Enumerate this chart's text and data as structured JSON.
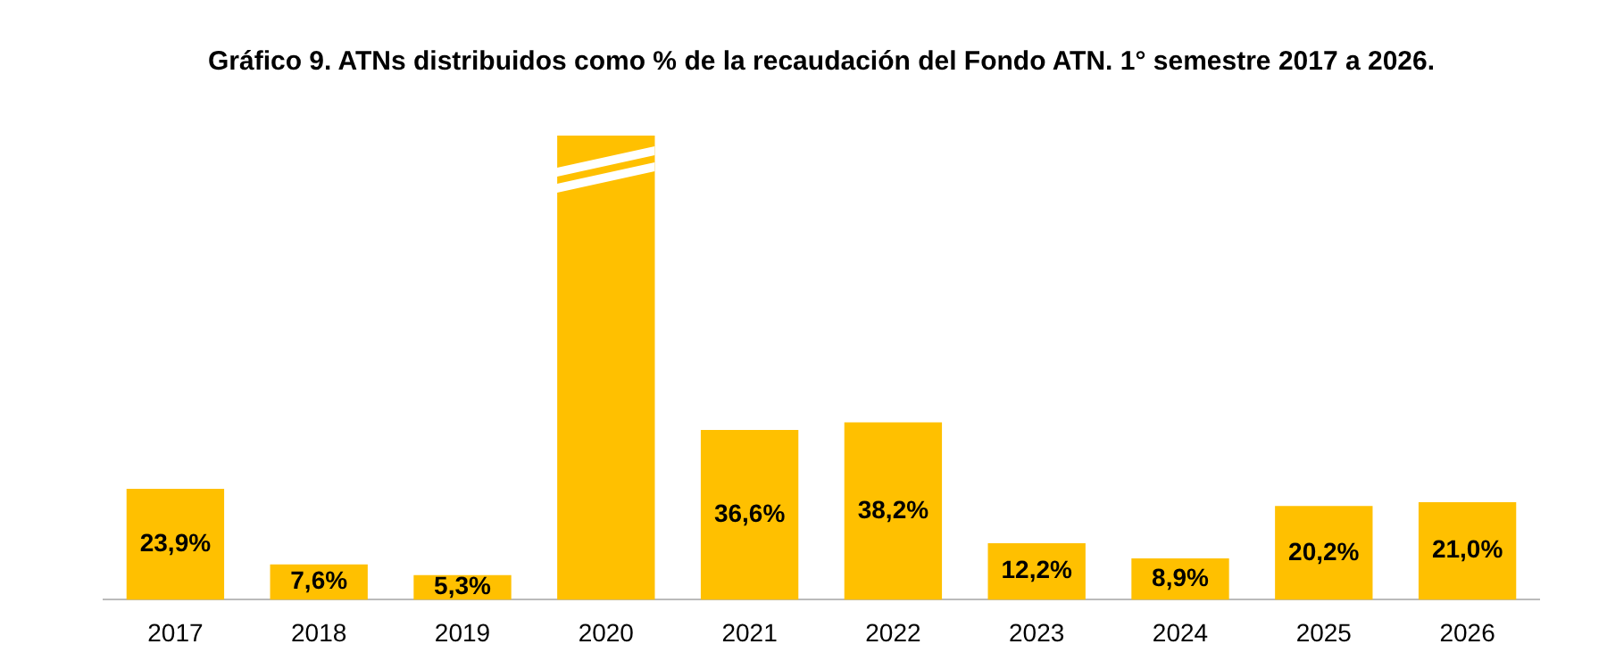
{
  "chart_data": {
    "type": "bar",
    "title": "Gráfico 9. ATNs distribuidos como % de la recaudación del Fondo ATN. 1° semestre 2017 a 2026.",
    "categories": [
      "2017",
      "2018",
      "2019",
      "2020",
      "2021",
      "2022",
      "2023",
      "2024",
      "2025",
      "2026"
    ],
    "values": [
      23.9,
      7.6,
      5.3,
      100,
      36.6,
      38.2,
      12.2,
      8.9,
      20.2,
      21.0
    ],
    "value_labels": [
      "23,9%",
      "7,6%",
      "5,3%",
      null,
      "36,6%",
      "38,2%",
      "12,2%",
      "8,9%",
      "20,2%",
      "21,0%"
    ],
    "color": "#ffc000",
    "grid": false,
    "legend": false
  }
}
